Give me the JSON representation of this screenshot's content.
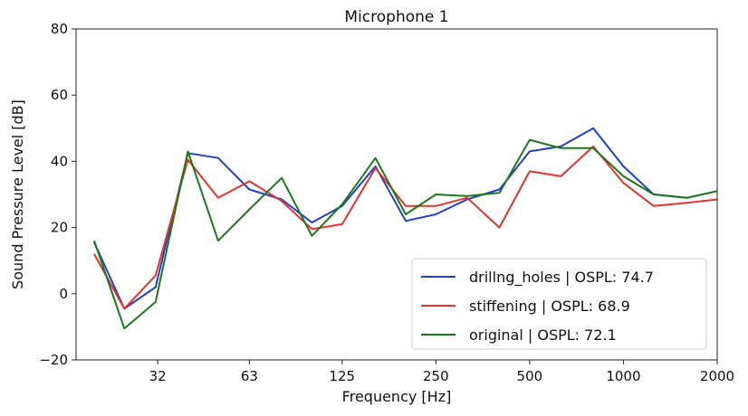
{
  "chart_data": {
    "type": "line",
    "title": "Microphone 1",
    "xlabel": "Frequency [Hz]",
    "ylabel": "Sound Pressure Level [dB]",
    "x_scale": "log",
    "xlim": [
      17.5,
      2000
    ],
    "ylim": [
      -20,
      80
    ],
    "x_ticks": [
      32,
      63,
      125,
      250,
      500,
      1000,
      2000
    ],
    "x_tick_labels": [
      "32",
      "63",
      "125",
      "250",
      "500",
      "1000",
      "2000"
    ],
    "y_ticks": [
      -20,
      0,
      20,
      40,
      60,
      80
    ],
    "y_tick_labels": [
      "−20",
      "0",
      "20",
      "40",
      "60",
      "80"
    ],
    "grid": false,
    "legend_position": "lower-right",
    "x": [
      20,
      25,
      31.5,
      40,
      50,
      63,
      80,
      100,
      125,
      160,
      200,
      250,
      315,
      400,
      500,
      630,
      800,
      1000,
      1250,
      1600,
      2000
    ],
    "series": [
      {
        "name": "drillng_holes | OSPL: 74.7",
        "color": "#1f3fd1",
        "values": [
          15.5,
          -4.5,
          2,
          42.5,
          41,
          31.5,
          28.5,
          21.5,
          26.5,
          38.5,
          22,
          24,
          28.5,
          31.5,
          43,
          44.5,
          50,
          38.5,
          30,
          29,
          31
        ]
      },
      {
        "name": "stiffening | OSPL: 68.9",
        "color": "#e8322a",
        "values": [
          12,
          -4.5,
          5.5,
          40.5,
          29,
          34,
          28,
          19.5,
          21,
          38,
          26.5,
          26.5,
          29,
          20,
          37,
          35.5,
          44.5,
          33.5,
          26.5,
          27.5,
          28.5
        ]
      },
      {
        "name": "original | OSPL: 72.1",
        "color": "#1a7a1a",
        "values": [
          16,
          -10.5,
          -2.5,
          43,
          16,
          25.5,
          35,
          17.5,
          27,
          41,
          24,
          30,
          29.5,
          30.5,
          46.5,
          44,
          44,
          35.5,
          30,
          29,
          31
        ]
      }
    ]
  }
}
